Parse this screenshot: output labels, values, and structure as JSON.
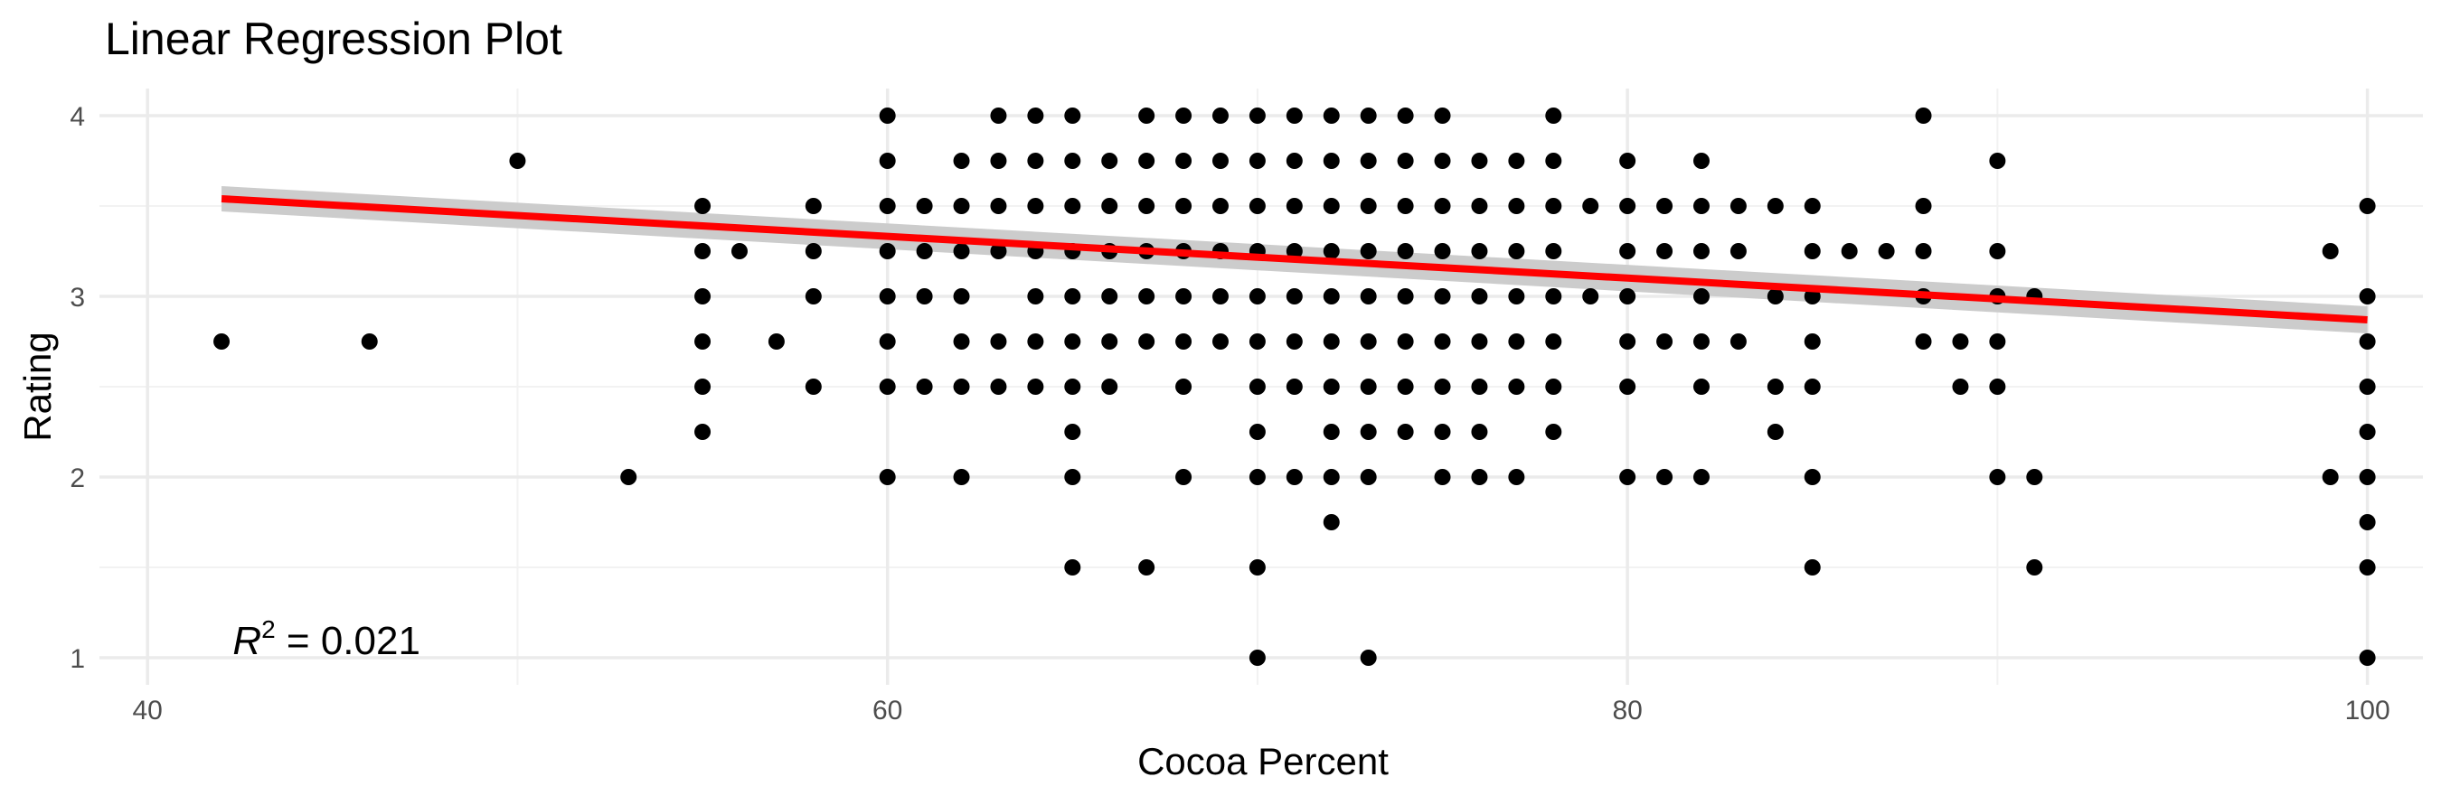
{
  "chart_data": {
    "type": "scatter",
    "title": "Linear Regression Plot",
    "xlabel": "Cocoa Percent",
    "ylabel": "Rating",
    "xlim": [
      38.7,
      101.5
    ],
    "ylim": [
      0.85,
      4.15
    ],
    "x_ticks": [
      40,
      60,
      80,
      100
    ],
    "y_ticks": [
      1,
      2,
      3,
      4
    ],
    "grid": true,
    "colors": {
      "points": "#000000",
      "fit_line": "#ff0000",
      "confidence_band": "#cccccc",
      "grid": "#ebebeb"
    },
    "annotation": {
      "text_r": "R",
      "text_exp": "2",
      "text_rest": " = 0.021",
      "x": 42.3,
      "y": 1.02
    },
    "fit_line": {
      "x": [
        42,
        100
      ],
      "y": [
        3.54,
        2.87
      ],
      "band_halfwidth": [
        0.07,
        0.075
      ]
    },
    "points": [
      [
        42,
        2.75
      ],
      [
        46,
        2.75
      ],
      [
        50,
        3.75
      ],
      [
        53,
        2
      ],
      [
        55,
        3.5
      ],
      [
        55,
        3.25
      ],
      [
        55,
        3
      ],
      [
        55,
        2.75
      ],
      [
        55,
        2.5
      ],
      [
        55,
        2.25
      ],
      [
        56,
        3.25
      ],
      [
        57,
        2.75
      ],
      [
        58,
        3.5
      ],
      [
        58,
        3.25
      ],
      [
        58,
        3
      ],
      [
        58,
        2.5
      ],
      [
        60,
        4
      ],
      [
        60,
        3.75
      ],
      [
        60,
        3.5
      ],
      [
        60,
        3.25
      ],
      [
        60,
        3
      ],
      [
        60,
        2.75
      ],
      [
        60,
        2.5
      ],
      [
        60,
        2
      ],
      [
        61,
        3.5
      ],
      [
        61,
        3.25
      ],
      [
        61,
        3
      ],
      [
        61,
        2.5
      ],
      [
        62,
        3.75
      ],
      [
        62,
        3.5
      ],
      [
        62,
        3.25
      ],
      [
        62,
        3
      ],
      [
        62,
        2.75
      ],
      [
        62,
        2.5
      ],
      [
        62,
        2
      ],
      [
        63,
        4
      ],
      [
        63,
        3.75
      ],
      [
        63,
        3.5
      ],
      [
        63,
        3.25
      ],
      [
        63,
        2.75
      ],
      [
        63,
        2.5
      ],
      [
        64,
        4
      ],
      [
        64,
        3.75
      ],
      [
        64,
        3.5
      ],
      [
        64,
        3.25
      ],
      [
        64,
        3
      ],
      [
        64,
        2.75
      ],
      [
        64,
        2.5
      ],
      [
        65,
        4
      ],
      [
        65,
        3.75
      ],
      [
        65,
        3.5
      ],
      [
        65,
        3.25
      ],
      [
        65,
        3
      ],
      [
        65,
        2.75
      ],
      [
        65,
        2.5
      ],
      [
        65,
        2.25
      ],
      [
        65,
        2
      ],
      [
        65,
        1.5
      ],
      [
        66,
        3.75
      ],
      [
        66,
        3.5
      ],
      [
        66,
        3.25
      ],
      [
        66,
        3
      ],
      [
        66,
        2.75
      ],
      [
        66,
        2.5
      ],
      [
        67,
        4
      ],
      [
        67,
        3.75
      ],
      [
        67,
        3.5
      ],
      [
        67,
        3.25
      ],
      [
        67,
        3
      ],
      [
        67,
        2.75
      ],
      [
        67,
        1.5
      ],
      [
        68,
        4
      ],
      [
        68,
        3.75
      ],
      [
        68,
        3.5
      ],
      [
        68,
        3.25
      ],
      [
        68,
        3
      ],
      [
        68,
        2.75
      ],
      [
        68,
        2.5
      ],
      [
        68,
        2
      ],
      [
        69,
        4
      ],
      [
        69,
        3.75
      ],
      [
        69,
        3.5
      ],
      [
        69,
        3.25
      ],
      [
        69,
        3
      ],
      [
        69,
        2.75
      ],
      [
        70,
        4
      ],
      [
        70,
        3.75
      ],
      [
        70,
        3.5
      ],
      [
        70,
        3.25
      ],
      [
        70,
        3
      ],
      [
        70,
        2.75
      ],
      [
        70,
        2.5
      ],
      [
        70,
        2.25
      ],
      [
        70,
        2
      ],
      [
        70,
        1.5
      ],
      [
        70,
        1
      ],
      [
        71,
        4
      ],
      [
        71,
        3.75
      ],
      [
        71,
        3.5
      ],
      [
        71,
        3.25
      ],
      [
        71,
        3
      ],
      [
        71,
        2.75
      ],
      [
        71,
        2.5
      ],
      [
        71,
        2
      ],
      [
        72,
        4
      ],
      [
        72,
        3.75
      ],
      [
        72,
        3.5
      ],
      [
        72,
        3.25
      ],
      [
        72,
        3
      ],
      [
        72,
        2.75
      ],
      [
        72,
        2.5
      ],
      [
        72,
        2.25
      ],
      [
        72,
        2
      ],
      [
        72,
        1.75
      ],
      [
        73,
        4
      ],
      [
        73,
        3.75
      ],
      [
        73,
        3.5
      ],
      [
        73,
        3.25
      ],
      [
        73,
        3
      ],
      [
        73,
        2.75
      ],
      [
        73,
        2.5
      ],
      [
        73,
        2.25
      ],
      [
        73,
        2
      ],
      [
        73,
        1
      ],
      [
        74,
        4
      ],
      [
        74,
        3.75
      ],
      [
        74,
        3.5
      ],
      [
        74,
        3.25
      ],
      [
        74,
        3
      ],
      [
        74,
        2.75
      ],
      [
        74,
        2.5
      ],
      [
        74,
        2.25
      ],
      [
        75,
        4
      ],
      [
        75,
        3.75
      ],
      [
        75,
        3.5
      ],
      [
        75,
        3.25
      ],
      [
        75,
        3
      ],
      [
        75,
        2.75
      ],
      [
        75,
        2.5
      ],
      [
        75,
        2.25
      ],
      [
        75,
        2
      ],
      [
        76,
        3.75
      ],
      [
        76,
        3.5
      ],
      [
        76,
        3.25
      ],
      [
        76,
        3
      ],
      [
        76,
        2.75
      ],
      [
        76,
        2.5
      ],
      [
        76,
        2.25
      ],
      [
        76,
        2
      ],
      [
        77,
        3.75
      ],
      [
        77,
        3.5
      ],
      [
        77,
        3.25
      ],
      [
        77,
        3
      ],
      [
        77,
        2.75
      ],
      [
        77,
        2.5
      ],
      [
        77,
        2
      ],
      [
        78,
        4
      ],
      [
        78,
        3.75
      ],
      [
        78,
        3.5
      ],
      [
        78,
        3.25
      ],
      [
        78,
        3
      ],
      [
        78,
        2.75
      ],
      [
        78,
        2.5
      ],
      [
        78,
        2.25
      ],
      [
        79,
        3.5
      ],
      [
        79,
        3
      ],
      [
        80,
        3.75
      ],
      [
        80,
        3.5
      ],
      [
        80,
        3.25
      ],
      [
        80,
        3
      ],
      [
        80,
        2.75
      ],
      [
        80,
        2.5
      ],
      [
        80,
        2
      ],
      [
        81,
        3.5
      ],
      [
        81,
        3.25
      ],
      [
        81,
        2.75
      ],
      [
        81,
        2
      ],
      [
        82,
        3.75
      ],
      [
        82,
        3.5
      ],
      [
        82,
        3.25
      ],
      [
        82,
        3
      ],
      [
        82,
        2.75
      ],
      [
        82,
        2.5
      ],
      [
        82,
        2
      ],
      [
        83,
        3.5
      ],
      [
        83,
        3.25
      ],
      [
        83,
        2.75
      ],
      [
        84,
        3.5
      ],
      [
        84,
        3
      ],
      [
        84,
        2.5
      ],
      [
        84,
        2.25
      ],
      [
        85,
        3.5
      ],
      [
        85,
        3.25
      ],
      [
        85,
        3
      ],
      [
        85,
        2.75
      ],
      [
        85,
        2.5
      ],
      [
        85,
        2
      ],
      [
        85,
        1.5
      ],
      [
        86,
        3.25
      ],
      [
        87,
        3.25
      ],
      [
        88,
        4
      ],
      [
        88,
        3.5
      ],
      [
        88,
        3.25
      ],
      [
        88,
        3
      ],
      [
        88,
        2.75
      ],
      [
        89,
        2.75
      ],
      [
        89,
        2.5
      ],
      [
        90,
        3.75
      ],
      [
        90,
        3.25
      ],
      [
        90,
        3
      ],
      [
        90,
        2.75
      ],
      [
        90,
        2.5
      ],
      [
        90,
        2
      ],
      [
        91,
        3
      ],
      [
        91,
        2
      ],
      [
        91,
        1.5
      ],
      [
        99,
        3.25
      ],
      [
        99,
        2
      ],
      [
        100,
        3.5
      ],
      [
        100,
        3
      ],
      [
        100,
        2.75
      ],
      [
        100,
        2.5
      ],
      [
        100,
        2.25
      ],
      [
        100,
        2
      ],
      [
        100,
        1.75
      ],
      [
        100,
        1.5
      ],
      [
        100,
        1
      ]
    ]
  }
}
